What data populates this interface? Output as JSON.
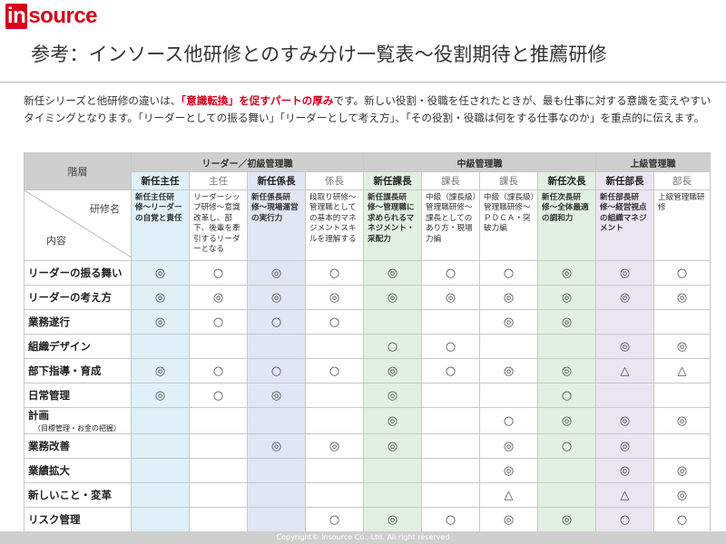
{
  "logo": {
    "in": "in",
    "source": "source"
  },
  "title": "参考：インソース他研修とのすみ分け一覧表〜役割期待と推薦研修",
  "intro": {
    "before": "新任シリーズと他研修の違いは、",
    "emphasis": "「意識転換」を促すパートの厚み",
    "after": "です。新しい役割・役職を任されたときが、最も仕事に対する意識を変えやすいタイミングとなります。「リーダーとしての振る舞い」「リーダーとして考え方」、「その役割・役職は何をする仕事なのか」を重点的に伝えます。"
  },
  "table": {
    "layer_header": "階層",
    "groups": [
      "リーダー／初級管理職",
      "中級管理職",
      "上級管理職"
    ],
    "corner_top": "研修名",
    "corner_bottom": "内容",
    "levels": [
      "新任主任",
      "主任",
      "新任係長",
      "係長",
      "新任課長",
      "課長",
      "課長",
      "新任次長",
      "新任部長",
      "部長"
    ],
    "courses": [
      "新任主任研修〜リーダーの自覚と責任",
      "リーダーシップ研修〜意識改革し、部下、後輩を牽引するリーダーとなる",
      "新任係長研修〜現場運営の実行力",
      "段取り研修〜管理職としての基本的マネジメントスキルを理解する",
      "新任課長研修〜管理職に求められるマネジメント・采配力",
      "中級（課長級）管理職研修〜課長としてのあり方・現場力編",
      "中級（課長級）管理職研修〜ＰＤＣＡ・突破力編",
      "新任次長研修〜全体最適の調和力",
      "新任部長研修〜経営視点の組織マネジメント",
      "上級管理職研修"
    ],
    "rows": [
      {
        "label": "リーダーの振る舞い",
        "sub": "",
        "marks": [
          "◎",
          "○",
          "◎",
          "○",
          "◎",
          "○",
          "○",
          "◎",
          "◎",
          "○"
        ]
      },
      {
        "label": "リーダーの考え方",
        "sub": "",
        "marks": [
          "◎",
          "◎",
          "◎",
          "◎",
          "◎",
          "◎",
          "◎",
          "◎",
          "◎",
          "◎"
        ]
      },
      {
        "label": "業務遂行",
        "sub": "",
        "marks": [
          "◎",
          "○",
          "○",
          "○",
          "",
          "",
          "◎",
          "◎",
          "",
          ""
        ]
      },
      {
        "label": "組織デザイン",
        "sub": "",
        "marks": [
          "",
          "",
          "",
          "",
          "○",
          "○",
          "",
          "",
          "◎",
          "◎"
        ]
      },
      {
        "label": "部下指導・育成",
        "sub": "",
        "marks": [
          "◎",
          "○",
          "○",
          "○",
          "◎",
          "○",
          "◎",
          "◎",
          "△",
          "△"
        ]
      },
      {
        "label": "日常管理",
        "sub": "",
        "marks": [
          "◎",
          "○",
          "◎",
          "",
          "◎",
          "",
          "",
          "○",
          "",
          ""
        ]
      },
      {
        "label": "計画",
        "sub": "（目標管理・お金の把握）",
        "marks": [
          "",
          "",
          "",
          "",
          "◎",
          "",
          "○",
          "◎",
          "◎",
          "◎"
        ]
      },
      {
        "label": "業務改善",
        "sub": "",
        "marks": [
          "",
          "",
          "◎",
          "◎",
          "◎",
          "",
          "◎",
          "○",
          "◎",
          ""
        ]
      },
      {
        "label": "業績拡大",
        "sub": "",
        "marks": [
          "",
          "",
          "",
          "",
          "",
          "",
          "◎",
          "",
          "◎",
          "◎"
        ]
      },
      {
        "label": "新しいこと・変革",
        "sub": "",
        "marks": [
          "",
          "",
          "",
          "",
          "",
          "",
          "△",
          "",
          "△",
          "◎"
        ]
      },
      {
        "label": "リスク管理",
        "sub": "",
        "marks": [
          "",
          "",
          "",
          "○",
          "◎",
          "○",
          "◎",
          "◎",
          "○",
          "○"
        ]
      }
    ]
  },
  "footer": "Copyright© Insource Co., Ltd. All right reserved"
}
